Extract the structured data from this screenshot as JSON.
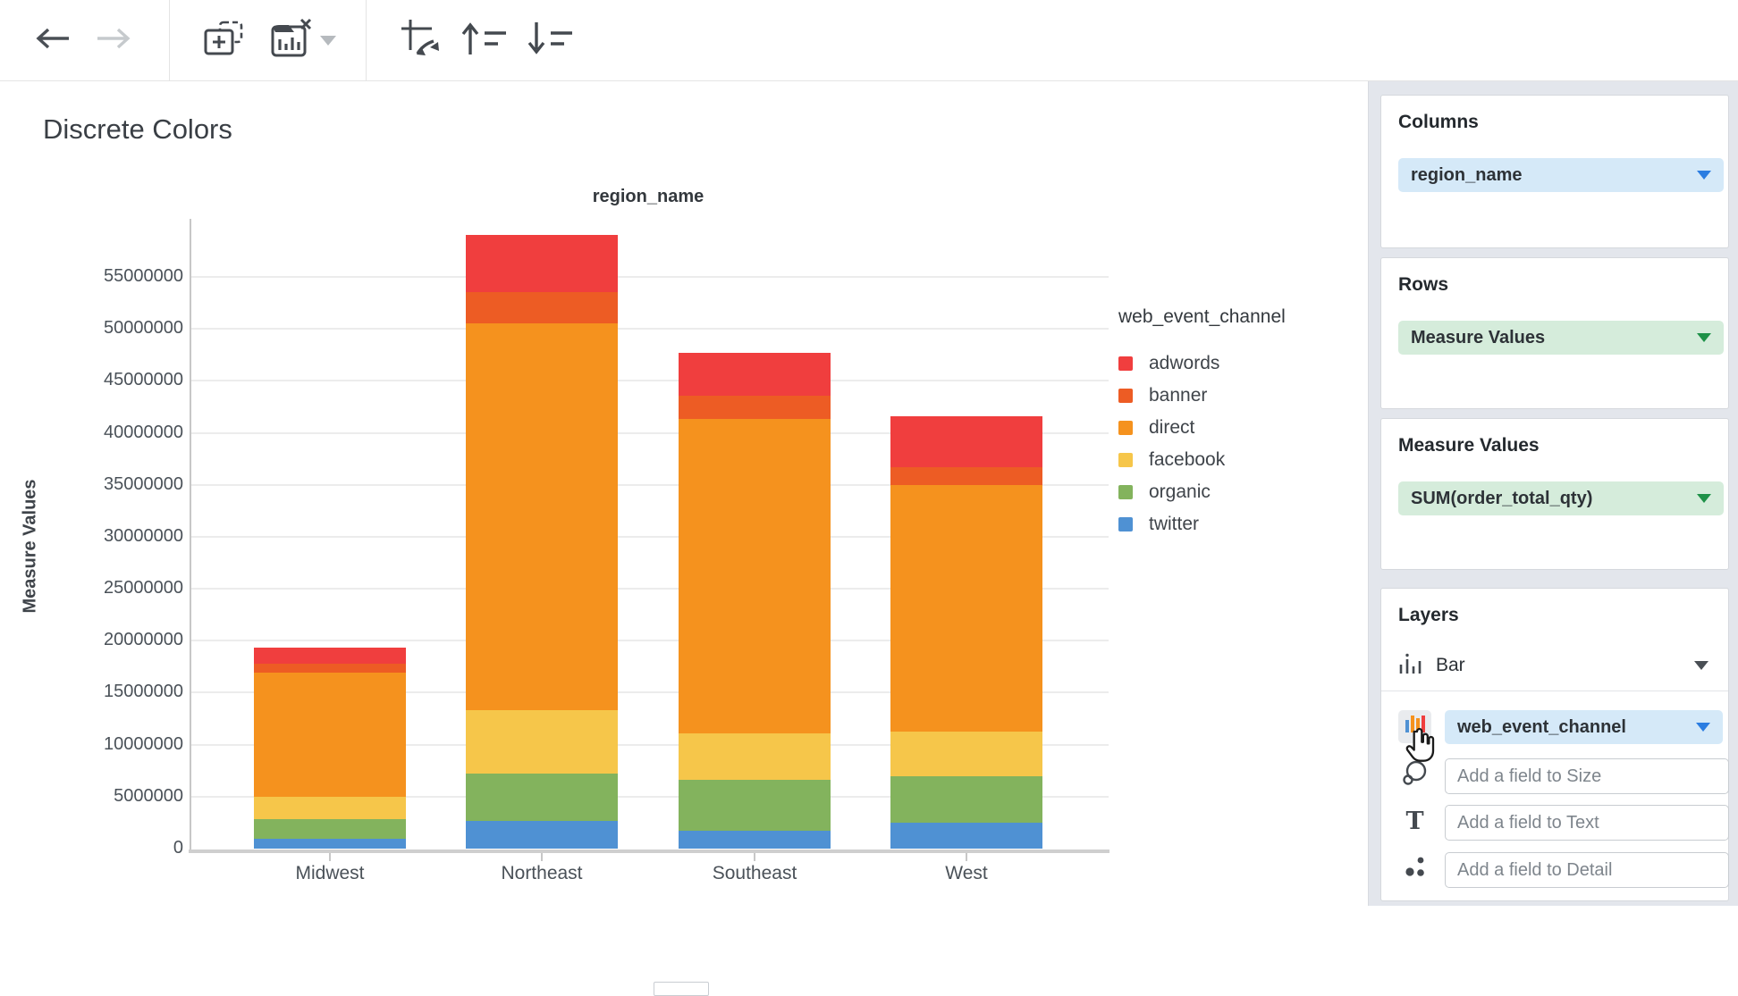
{
  "page": {
    "title": "Discrete Colors"
  },
  "toolbar": {
    "icons": [
      "back-arrow",
      "forward-arrow",
      "add-chart",
      "remove-chart",
      "remove-chart-caret",
      "swap-axes",
      "sort-ascending",
      "sort-descending"
    ]
  },
  "chart_data": {
    "type": "bar",
    "stacked": true,
    "title": "region_name",
    "xlabel": "region_name",
    "ylabel": "Measure Values",
    "legend_title": "web_event_channel",
    "legend_position": "right",
    "grid": "horizontal",
    "categories": [
      "Midwest",
      "Northeast",
      "Southeast",
      "West"
    ],
    "series": [
      {
        "name": "adwords",
        "color": "#f03e3e",
        "values": [
          1550000,
          5550000,
          4100000,
          4900000
        ]
      },
      {
        "name": "banner",
        "color": "#ed5c24",
        "values": [
          850000,
          3000000,
          2300000,
          1700000
        ]
      },
      {
        "name": "direct",
        "color": "#f5921e",
        "values": [
          12000000,
          37200000,
          30200000,
          23750000
        ]
      },
      {
        "name": "facebook",
        "color": "#f6c64a",
        "values": [
          2100000,
          6100000,
          4500000,
          4250000
        ]
      },
      {
        "name": "organic",
        "color": "#83b35d",
        "values": [
          1900000,
          4500000,
          4900000,
          4500000
        ]
      },
      {
        "name": "twitter",
        "color": "#4f91d3",
        "values": [
          950000,
          2700000,
          1700000,
          2500000
        ]
      }
    ],
    "stack_order_bottom_to_top": [
      "twitter",
      "organic",
      "facebook",
      "direct",
      "banner",
      "adwords"
    ],
    "totals": [
      19350000,
      59050000,
      47700000,
      41600000
    ],
    "ylim": [
      0,
      59100000
    ],
    "yticks": [
      0,
      5000000,
      10000000,
      15000000,
      20000000,
      25000000,
      30000000,
      35000000,
      40000000,
      45000000,
      50000000,
      55000000
    ]
  },
  "sidebar": {
    "columns": {
      "label": "Columns",
      "pill": "region_name"
    },
    "rows": {
      "label": "Rows",
      "pill": "Measure Values"
    },
    "measure_values": {
      "label": "Measure Values",
      "pill": "SUM(order_total_qty)"
    },
    "layers": {
      "label": "Layers",
      "layer_type": "Bar",
      "color_pill": "web_event_channel",
      "size_placeholder": "Add a field to Size",
      "text_placeholder": "Add a field to Text",
      "detail_placeholder": "Add a field to Detail"
    }
  }
}
